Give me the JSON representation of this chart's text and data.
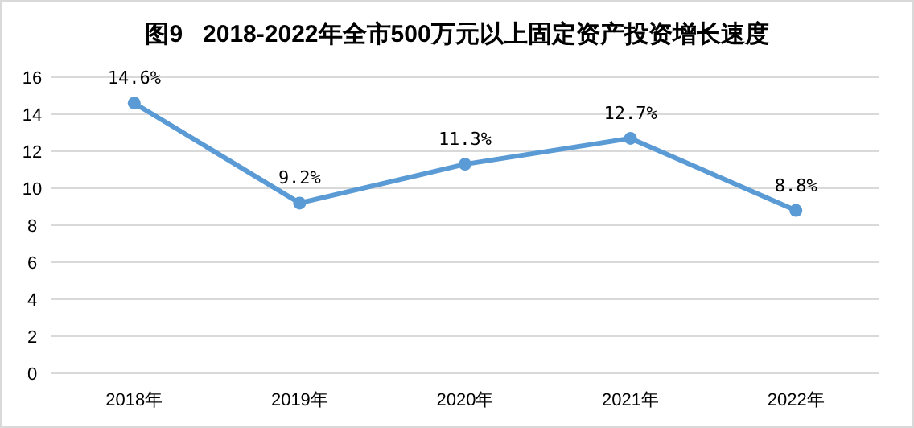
{
  "chart_data": {
    "type": "line",
    "title": "图9   2018-2022年全市500万元以上固定资产投资增长速度",
    "categories": [
      "2018年",
      "2019年",
      "2020年",
      "2021年",
      "2022年"
    ],
    "series": [
      {
        "color": "#5b9bd5",
        "values": [
          14.6,
          9.2,
          11.3,
          12.7,
          8.8
        ],
        "value_labels": [
          "14.6%",
          "9.2%",
          "11.3%",
          "12.7%",
          "8.8%"
        ]
      }
    ],
    "ylim": [
      0,
      16
    ],
    "yticks": [
      0,
      2,
      4,
      6,
      8,
      10,
      12,
      14,
      16
    ],
    "grid": "y",
    "marker": "circle",
    "line_style": "solid"
  }
}
